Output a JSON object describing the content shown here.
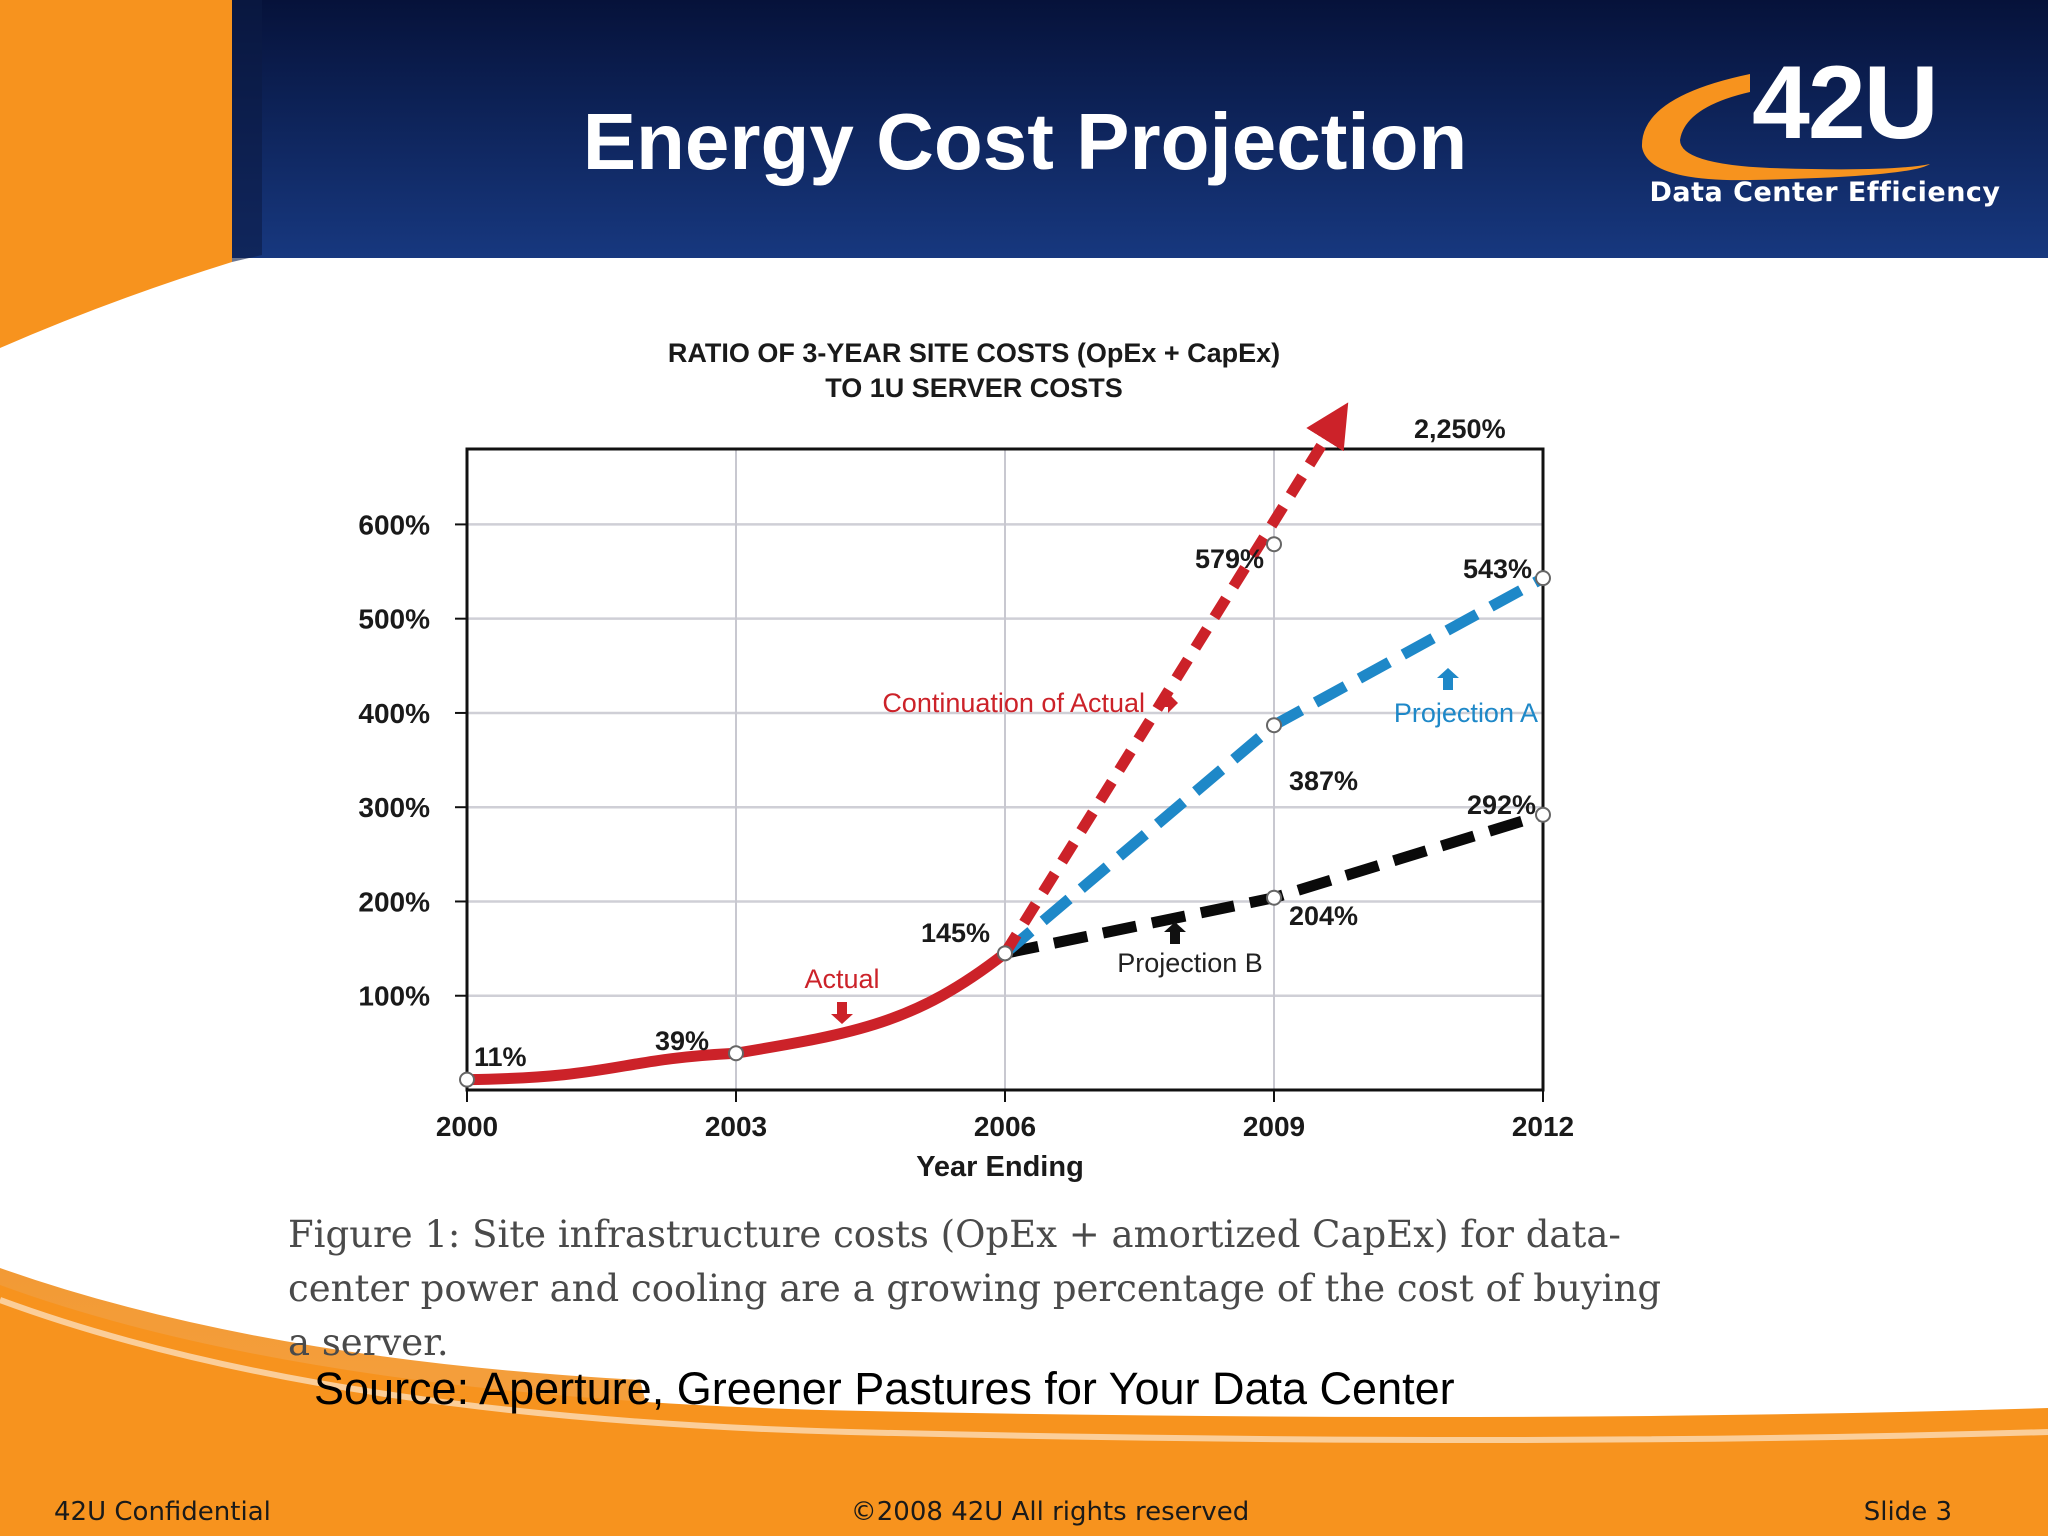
{
  "slide": {
    "title": "Energy Cost Projection",
    "caption": "Figure 1: Site infrastructure costs (OpEx + amortized CapEx) for data-center power and cooling are a growing percentage of the cost of buying a server.",
    "source": "Source: Aperture, Greener Pastures for Your Data Center"
  },
  "logo": {
    "name": "42U",
    "tagline": "Data Center Efficiency"
  },
  "footer": {
    "left": "42U Confidential",
    "center": "©2008 42U All rights reserved",
    "right": "Slide 3"
  },
  "colors": {
    "header_navy": "#0c2360",
    "accent_orange": "#f7931e",
    "actual_red": "#cc2229",
    "projection_a_blue": "#1e88c8",
    "projection_b_black": "#0a0a0a"
  },
  "chart_data": {
    "type": "line",
    "title": "RATIO OF 3-YEAR SITE COSTS (OpEx + CapEx)",
    "subtitle": "TO 1U SERVER COSTS",
    "xlabel": "Year Ending",
    "ylabel": "",
    "x_ticks": [
      2000,
      2003,
      2006,
      2009,
      2012
    ],
    "y_ticks": [
      100,
      200,
      300,
      400,
      500,
      600
    ],
    "y_tick_labels": [
      "100%",
      "200%",
      "300%",
      "400%",
      "500%",
      "600%"
    ],
    "xlim": [
      2000,
      2012
    ],
    "ylim": [
      0,
      680
    ],
    "grid": true,
    "series": [
      {
        "name": "Actual",
        "color": "#cc2229",
        "style": "solid",
        "points": [
          [
            2000,
            11
          ],
          [
            2003,
            39
          ],
          [
            2006,
            145
          ]
        ]
      },
      {
        "name": "Continuation of Actual",
        "color": "#cc2229",
        "style": "dashed",
        "points": [
          [
            2006,
            145
          ],
          [
            2009,
            579
          ]
        ],
        "arrow_label": "2,250%"
      },
      {
        "name": "Projection A",
        "color": "#1e88c8",
        "style": "dashed",
        "points": [
          [
            2006,
            145
          ],
          [
            2009,
            387
          ],
          [
            2012,
            543
          ]
        ]
      },
      {
        "name": "Projection B",
        "color": "#0a0a0a",
        "style": "dashed",
        "points": [
          [
            2006,
            145
          ],
          [
            2009,
            204
          ],
          [
            2012,
            292
          ]
        ]
      }
    ],
    "data_labels": [
      "11%",
      "39%",
      "145%",
      "579%",
      "2,250%",
      "543%",
      "387%",
      "292%",
      "204%"
    ]
  }
}
